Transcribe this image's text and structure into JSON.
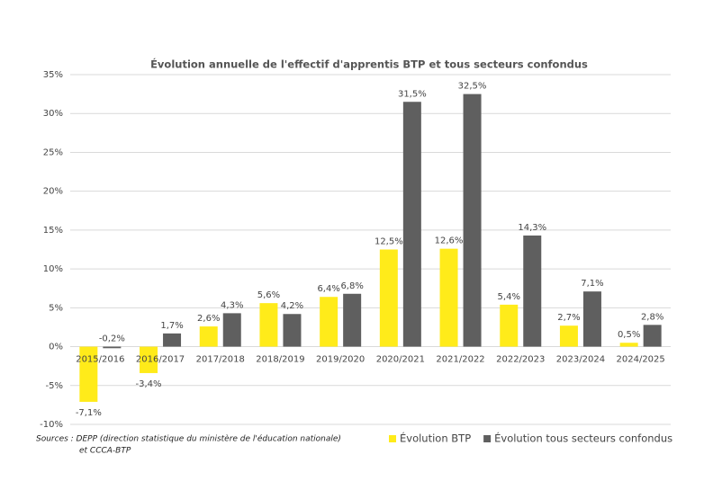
{
  "chart_data": {
    "type": "bar",
    "title": "Évolution annuelle de l'effectif d'apprentis BTP et tous secteurs confondus",
    "categories": [
      "2015/2016",
      "2016/2017",
      "2017/2018",
      "2018/2019",
      "2019/2020",
      "2020/2021",
      "2021/2022",
      "2022/2023",
      "2023/2024",
      "2024/2025"
    ],
    "series": [
      {
        "name": "Évolution BTP",
        "color": "#ffeb1a",
        "values": [
          -7.1,
          -3.4,
          2.6,
          5.6,
          6.4,
          12.5,
          12.6,
          5.4,
          2.7,
          0.5
        ],
        "value_labels": [
          "-7,1%",
          "-3,4%",
          "2,6%",
          "5,6%",
          "6,4%",
          "12,5%",
          "12,6%",
          "5,4%",
          "2,7%",
          "0,5%"
        ]
      },
      {
        "name": "Évolution tous secteurs confondus",
        "color": "#5f5f5f",
        "values": [
          -0.2,
          1.7,
          4.3,
          4.2,
          6.8,
          31.5,
          32.5,
          14.3,
          7.1,
          2.8
        ],
        "value_labels": [
          "-0,2%",
          "1,7%",
          "4,3%",
          "4,2%",
          "6,8%",
          "31,5%",
          "32,5%",
          "14,3%",
          "7,1%",
          "2,8%"
        ]
      }
    ],
    "ylim": [
      -10,
      35
    ],
    "yticks": [
      {
        "value": -10,
        "label": "-10%"
      },
      {
        "value": -5,
        "label": "-5%"
      },
      {
        "value": 0,
        "label": "0%"
      },
      {
        "value": 5,
        "label": "5%"
      },
      {
        "value": 10,
        "label": "10%"
      },
      {
        "value": 15,
        "label": "15%"
      },
      {
        "value": 20,
        "label": "20%"
      },
      {
        "value": 25,
        "label": "25%"
      },
      {
        "value": 30,
        "label": "30%"
      },
      {
        "value": 35,
        "label": "35%"
      }
    ],
    "grid": true,
    "legend": "bottom-right",
    "source": [
      "Sources : DEPP (direction statistique du ministère de l'éducation nationale)",
      "et CCCA-BTP"
    ]
  }
}
